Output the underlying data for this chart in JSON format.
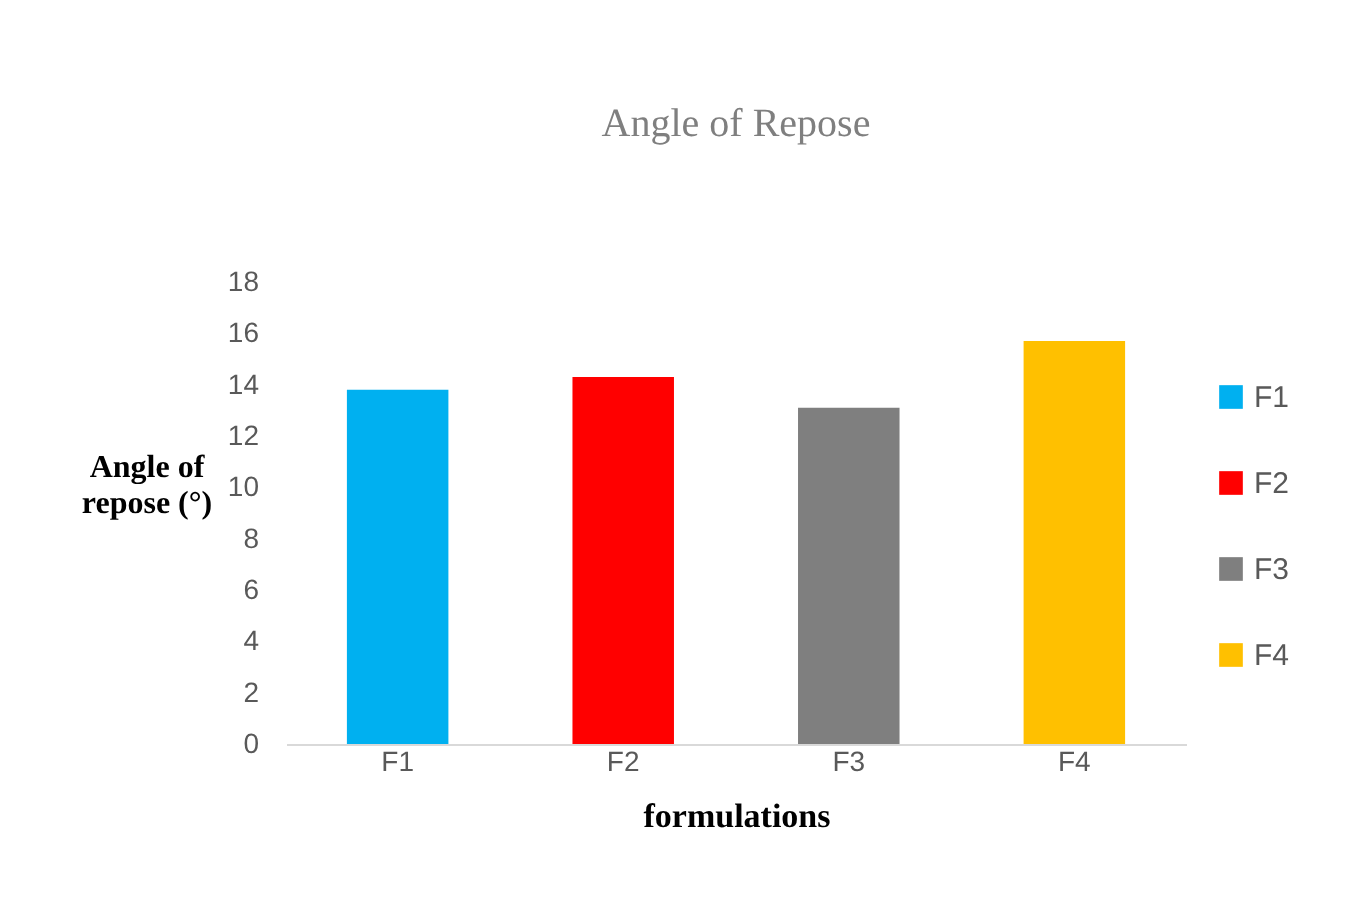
{
  "chart_data": {
    "type": "bar",
    "title": "Angle of Repose",
    "xlabel": "formulations",
    "ylabel": "Angle of repose (°)",
    "categories": [
      "F1",
      "F2",
      "F3",
      "F4"
    ],
    "series": [
      {
        "name": "F1",
        "color": "#00b0f0",
        "values": [
          13.8,
          null,
          null,
          null
        ]
      },
      {
        "name": "F2",
        "color": "#ff0000",
        "values": [
          null,
          14.3,
          null,
          null
        ]
      },
      {
        "name": "F3",
        "color": "#7f7f7f",
        "values": [
          null,
          null,
          13.1,
          null
        ]
      },
      {
        "name": "F4",
        "color": "#ffc000",
        "values": [
          null,
          null,
          null,
          15.7
        ]
      }
    ],
    "ylim": [
      0,
      18
    ],
    "yticks": [
      0,
      2,
      4,
      6,
      8,
      10,
      12,
      14,
      16,
      18
    ],
    "grid": false,
    "legend": "right"
  }
}
